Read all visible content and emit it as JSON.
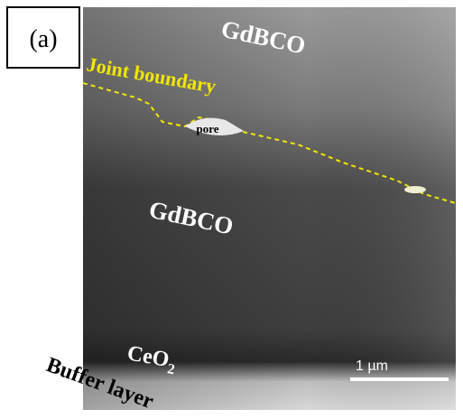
{
  "panel_label": "(a)",
  "labels": {
    "top_layer": "GdBCO",
    "joint": "Joint boundary",
    "pore": "pore",
    "bottom_layer": "GdBCO",
    "ceo2": {
      "text": "CeO",
      "subscript": "2"
    },
    "buffer": "Buffer layer"
  },
  "scale_bar": "1 µm"
}
